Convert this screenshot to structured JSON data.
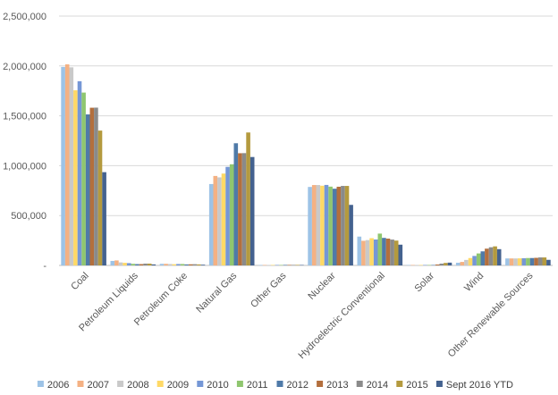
{
  "chart_data": {
    "type": "bar",
    "title": "",
    "xlabel": "",
    "ylabel": "",
    "ylim": [
      0,
      2500000
    ],
    "yticks": [
      0,
      500000,
      1000000,
      1500000,
      2000000,
      2500000
    ],
    "ytick_labels": [
      "-",
      "500,000",
      "1,000,000",
      "1,500,000",
      "2,000,000",
      "2,500,000"
    ],
    "grid": true,
    "legend_position": "bottom",
    "categories": [
      "Coal",
      "Petroleum Liquids",
      "Petroleum Coke",
      "Natural Gas",
      "Other Gas",
      "Nuclear",
      "Hydroelectric Conventional",
      "Solar",
      "Wind",
      "Other Renewable Sources"
    ],
    "series": [
      {
        "name": "2006",
        "color": "#9dc3e6",
        "values": [
          1990000,
          45000,
          16000,
          816000,
          4000,
          787000,
          289000,
          500,
          27000,
          70000
        ]
      },
      {
        "name": "2007",
        "color": "#f4b183",
        "values": [
          2016000,
          50000,
          16000,
          897000,
          4000,
          806000,
          247000,
          600,
          35000,
          70000
        ]
      },
      {
        "name": "2008",
        "color": "#c9c9c9",
        "values": [
          1986000,
          30000,
          14000,
          883000,
          4000,
          806000,
          254000,
          900,
          55000,
          70000
        ]
      },
      {
        "name": "2009",
        "color": "#ffd966",
        "values": [
          1756000,
          26000,
          12000,
          921000,
          4000,
          799000,
          273000,
          900,
          74000,
          71000
        ]
      },
      {
        "name": "2010",
        "color": "#7597d6",
        "values": [
          1847000,
          23000,
          14000,
          988000,
          4000,
          807000,
          260000,
          1200,
          95000,
          72000
        ]
      },
      {
        "name": "2011",
        "color": "#8fc66f",
        "values": [
          1733000,
          16000,
          14000,
          1014000,
          4000,
          790000,
          319000,
          1800,
          120000,
          74000
        ]
      },
      {
        "name": "2012",
        "color": "#4f7aa8",
        "values": [
          1514000,
          13000,
          10000,
          1225000,
          5000,
          769000,
          276000,
          4300,
          141000,
          74000
        ]
      },
      {
        "name": "2013",
        "color": "#b36f3d",
        "values": [
          1581000,
          13000,
          11000,
          1125000,
          5000,
          789000,
          269000,
          9000,
          168000,
          76000
        ]
      },
      {
        "name": "2014",
        "color": "#8a8a8a",
        "values": [
          1582000,
          18000,
          12000,
          1126000,
          5000,
          797000,
          259000,
          18000,
          182000,
          80000
        ]
      },
      {
        "name": "2015",
        "color": "#b49a3e",
        "values": [
          1352000,
          18000,
          10000,
          1333000,
          5000,
          797000,
          249000,
          25000,
          191000,
          80000
        ]
      },
      {
        "name": "Sept 2016 YTD",
        "color": "#44628f",
        "values": [
          935000,
          10000,
          7000,
          1087000,
          4000,
          607000,
          208000,
          28000,
          163000,
          56000
        ]
      }
    ]
  }
}
